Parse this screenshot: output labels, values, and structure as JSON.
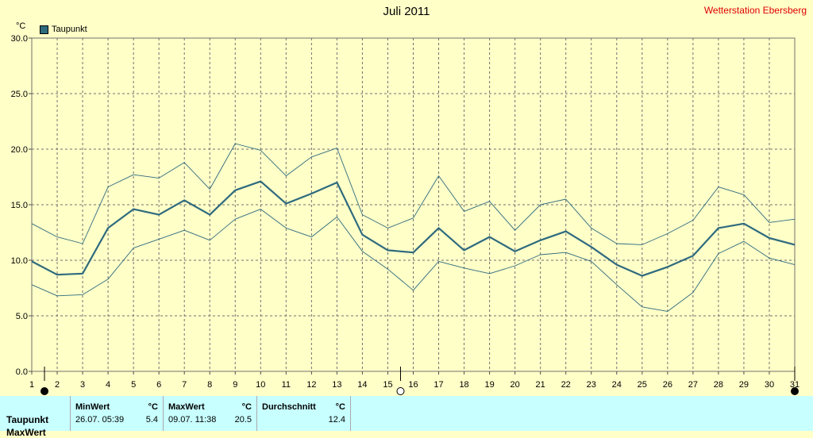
{
  "header": {
    "title": "Juli 2011",
    "station": "Wetterstation Ebersberg",
    "unit": "°C"
  },
  "chart_data": {
    "type": "line",
    "title": "Juli 2011",
    "ylabel": "°C",
    "ylim": [
      0,
      30
    ],
    "yticks": [
      "0.0",
      "5.0",
      "10.0",
      "15.0",
      "20.0",
      "25.0",
      "30.0"
    ],
    "x": [
      1,
      2,
      3,
      4,
      5,
      6,
      7,
      8,
      9,
      10,
      11,
      12,
      13,
      14,
      15,
      16,
      17,
      18,
      19,
      20,
      21,
      22,
      23,
      24,
      25,
      26,
      27,
      28,
      29,
      30,
      31
    ],
    "legend": [
      "Taupunkt"
    ],
    "grid": true,
    "series": [
      {
        "name": "Taupunkt",
        "role": "mean",
        "color": "#2e6a7e",
        "values": [
          9.9,
          8.7,
          8.8,
          12.9,
          14.6,
          14.1,
          15.4,
          14.1,
          16.3,
          17.1,
          15.1,
          16.0,
          17.0,
          12.3,
          10.9,
          10.7,
          12.9,
          10.9,
          12.1,
          10.8,
          11.8,
          12.6,
          11.2,
          9.6,
          8.6,
          9.4,
          10.4,
          12.9,
          13.3,
          12.0,
          11.4
        ]
      },
      {
        "name": "",
        "role": "max",
        "color": "#2e6a7e",
        "values": [
          13.3,
          12.1,
          11.5,
          16.6,
          17.7,
          17.4,
          18.8,
          16.4,
          20.5,
          19.9,
          17.6,
          19.3,
          20.1,
          14.1,
          12.9,
          13.8,
          17.6,
          14.4,
          15.3,
          12.7,
          15.0,
          15.5,
          12.9,
          11.5,
          11.4,
          12.4,
          13.6,
          16.6,
          15.9,
          13.4,
          13.7
        ]
      },
      {
        "name": "",
        "role": "min",
        "color": "#2e6a7e",
        "values": [
          7.8,
          6.8,
          6.9,
          8.3,
          11.1,
          11.9,
          12.7,
          11.8,
          13.7,
          14.6,
          12.9,
          12.1,
          13.9,
          10.8,
          9.2,
          7.3,
          9.9,
          9.3,
          8.8,
          9.5,
          10.5,
          10.7,
          9.9,
          7.8,
          5.8,
          5.4,
          7.1,
          10.6,
          11.7,
          10.2,
          9.6
        ]
      }
    ],
    "markers": [
      {
        "x": 1.5,
        "kind": "new-moon"
      },
      {
        "x": 15.5,
        "kind": "full-moon"
      },
      {
        "x": 31,
        "kind": "new-moon"
      }
    ]
  },
  "stats": {
    "row_label": "Taupunkt",
    "row_label_2": "MaxWert",
    "min": {
      "header": "MinWert",
      "unit": "°C",
      "date": "26.07.  05:39",
      "value": "5.4"
    },
    "max": {
      "header": "MaxWert",
      "unit": "°C",
      "date": "09.07.  11:38",
      "value": "20.5"
    },
    "avg": {
      "header": "Durchschnitt",
      "unit": "°C",
      "value": "12.4"
    }
  }
}
